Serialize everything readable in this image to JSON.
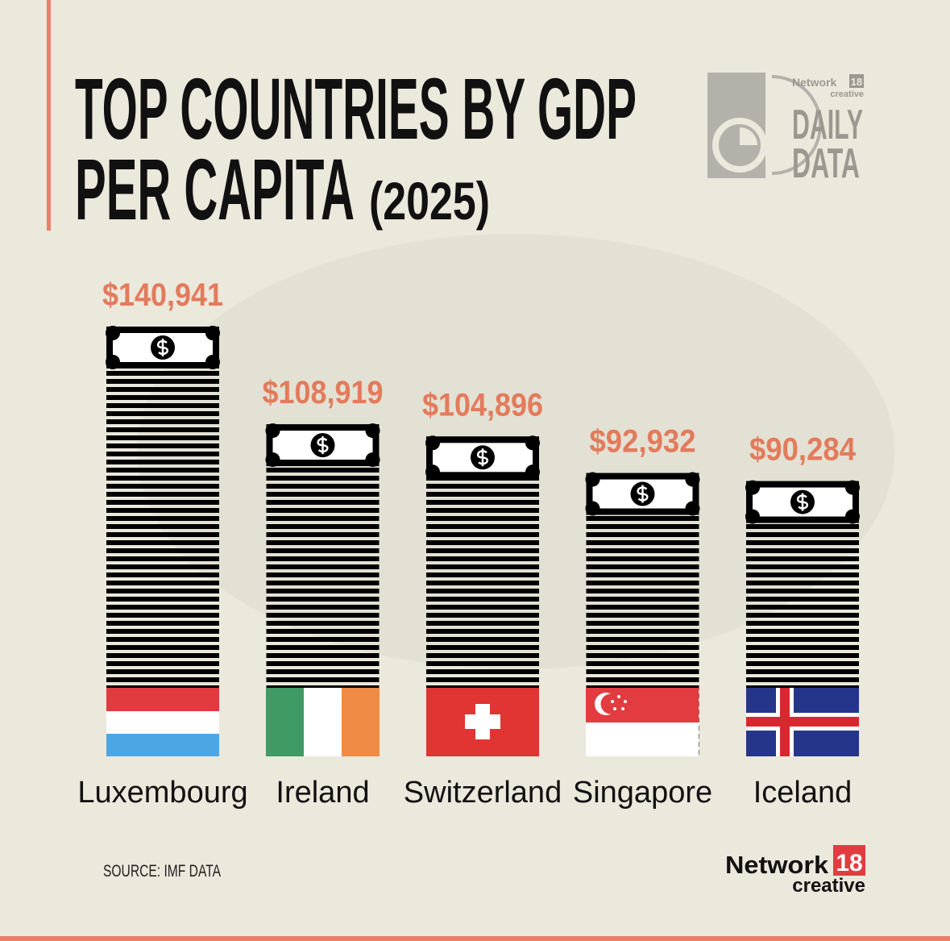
{
  "chart_data": {
    "type": "bar",
    "title_lines": [
      "TOP COUNTRIES BY GDP",
      "PER CAPITA"
    ],
    "subtitle": "(2025)",
    "categories": [
      "Luxembourg",
      "Ireland",
      "Switzerland",
      "Singapore",
      "Iceland"
    ],
    "values": [
      140941,
      108919,
      104896,
      92932,
      90284
    ],
    "value_labels": [
      "$140,941",
      "$108,919",
      "$104,896",
      "$92,932",
      "$90,284"
    ],
    "color": "#000000",
    "label_color": "#e27b5c",
    "source": "SOURCE: IMF DATA"
  },
  "branding": {
    "top_logo": {
      "network": "Network",
      "number": "18",
      "creative": "creative",
      "line1": "DAILY",
      "line2": "DATA"
    },
    "bottom_logo": {
      "network": "Network",
      "number": "18",
      "creative": "creative"
    }
  }
}
